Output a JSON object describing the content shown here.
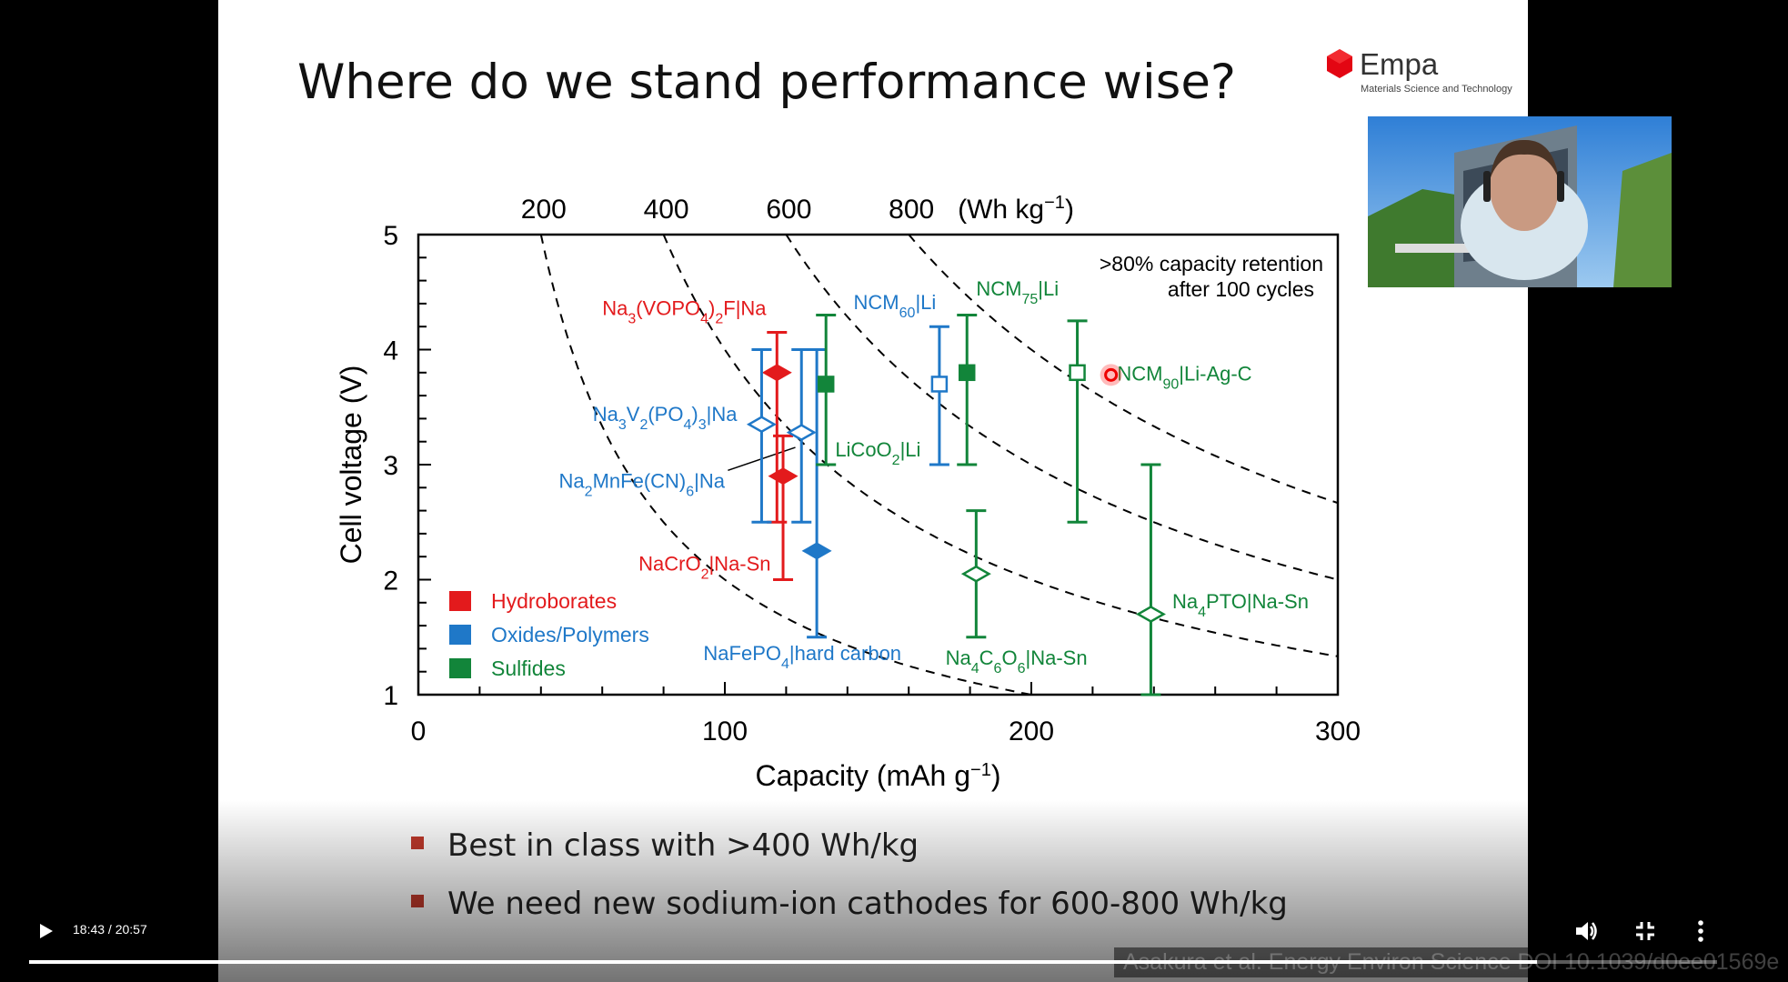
{
  "slide": {
    "title": "Where do we stand performance wise?",
    "logo": {
      "name": "Empa",
      "subtitle": "Materials Science and Technology",
      "color": "#e30613"
    },
    "bullets": [
      "Best in class with >400 Wh/kg",
      "We need new sodium-ion cathodes for 600-800 Wh/kg"
    ],
    "citation": "Asakura et al. Energy Environ Science DOI 10.1039/d0ee01569e"
  },
  "chart_data": {
    "type": "scatter",
    "xlabel": "Capacity (mAh g⁻¹)",
    "ylabel": "Cell voltage (V)",
    "top_axis_label": "(Wh kg⁻¹)",
    "xlim": [
      0,
      300
    ],
    "ylim": [
      1,
      5
    ],
    "x_ticks": [
      "0",
      "100",
      "200",
      "300"
    ],
    "y_ticks": [
      "1",
      "2",
      "3",
      "4",
      "5"
    ],
    "top_ticks": [
      "200",
      "400",
      "600",
      "800"
    ],
    "energy_curves_wh_per_kg": [
      200,
      400,
      600,
      800
    ],
    "annotation": ">80% capacity retention after 100 cycles",
    "legend": [
      {
        "name": "Hydroborates",
        "color": "#e31a1c"
      },
      {
        "name": "Oxides/Polymers",
        "color": "#1f78c8"
      },
      {
        "name": "Sulfides",
        "color": "#12853a"
      }
    ],
    "points": [
      {
        "label": "Na3(VOPO4)2F|Na",
        "group": "Hydroborates",
        "x": 117,
        "y": 3.8,
        "ylo": 2.5,
        "yhi": 4.15,
        "marker": "diamond",
        "filled": true
      },
      {
        "label": "NaCrO2|Na-Sn",
        "group": "Hydroborates",
        "x": 119,
        "y": 2.9,
        "ylo": 2.0,
        "yhi": 3.25,
        "marker": "diamond",
        "filled": true
      },
      {
        "label": "Na3V2(PO4)3|Na",
        "group": "Oxides/Polymers",
        "x": 112,
        "y": 3.35,
        "ylo": 2.5,
        "yhi": 4.0,
        "marker": "diamond",
        "filled": false
      },
      {
        "label": "Na2MnFe(CN)6|Na",
        "group": "Oxides/Polymers",
        "x": 125,
        "y": 3.28,
        "ylo": 2.5,
        "yhi": 4.0,
        "marker": "diamond",
        "filled": false
      },
      {
        "label": "NaFePO4|hard carbon",
        "group": "Oxides/Polymers",
        "x": 130,
        "y": 2.25,
        "ylo": 1.5,
        "yhi": 4.0,
        "marker": "diamond",
        "filled": true
      },
      {
        "label": "NCM60|Li",
        "group": "Oxides/Polymers",
        "x": 170,
        "y": 3.7,
        "ylo": 3.0,
        "yhi": 4.2,
        "marker": "square",
        "filled": false
      },
      {
        "label": "LiCoO2|Li",
        "group": "Sulfides",
        "x": 133,
        "y": 3.7,
        "ylo": 3.0,
        "yhi": 4.3,
        "marker": "square",
        "filled": true
      },
      {
        "label": "NCM75|Li",
        "group": "Sulfides",
        "x": 179,
        "y": 3.8,
        "ylo": 3.0,
        "yhi": 4.3,
        "marker": "square",
        "filled": true
      },
      {
        "label": "NCM90|Li-Ag-C",
        "group": "Sulfides",
        "x": 215,
        "y": 3.8,
        "ylo": 2.5,
        "yhi": 4.25,
        "marker": "square",
        "filled": false
      },
      {
        "label": "Na4C6O6|Na-Sn",
        "group": "Sulfides",
        "x": 182,
        "y": 2.05,
        "ylo": 1.5,
        "yhi": 2.6,
        "marker": "diamond",
        "filled": false
      },
      {
        "label": "Na4PTO|Na-Sn",
        "group": "Sulfides",
        "x": 239,
        "y": 1.7,
        "ylo": 1.0,
        "yhi": 3.0,
        "marker": "diamond",
        "filled": false
      }
    ]
  },
  "player": {
    "time_display": "18:43 / 20:57",
    "progress_fraction": 0.8934,
    "icons": {
      "play": "play-icon",
      "volume": "volume-icon",
      "exit_fullscreen": "exit-fullscreen-icon",
      "more": "more-options-icon"
    }
  }
}
